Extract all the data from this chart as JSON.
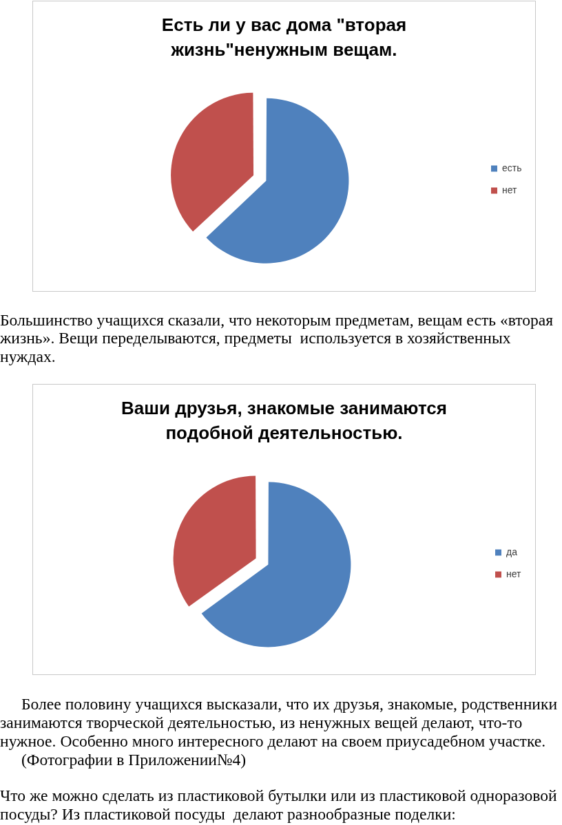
{
  "chart_data": [
    {
      "type": "pie",
      "title": "Есть ли у вас дома \"вторая жизнь\"ненужным вещам.",
      "categories": [
        "есть",
        "нет"
      ],
      "values": [
        63,
        37
      ],
      "colors": [
        "#4f81bd",
        "#c0504d"
      ],
      "legend": "right",
      "annotations": [
        "Большинство учащихся сказали, что некоторым предметам, вещам есть «вторая жизнь». Вещи переделываются, предметы  используется в хозяйственных нуждах."
      ]
    },
    {
      "type": "pie",
      "title": "Ваши друзья, знакомые занимаются подобной деятельностью.",
      "categories": [
        "да",
        "нет"
      ],
      "values": [
        65,
        35
      ],
      "colors": [
        "#4f81bd",
        "#c0504d"
      ],
      "legend": "right",
      "annotations": [
        "Более половину учащихся высказали, что их друзья, знакомые, родственники занимаются творческой деятельностью, из ненужных вещей делают, что-то нужное. Особенно много интересного делают на своем приусадебном участке.",
        "(Фотографии в Приложении№4)",
        "Что же можно сделать из пластиковой бутылки или из пластиковой одноразовой посуды? Из пластиковой посуды  делают разнообразные поделки:"
      ]
    }
  ]
}
